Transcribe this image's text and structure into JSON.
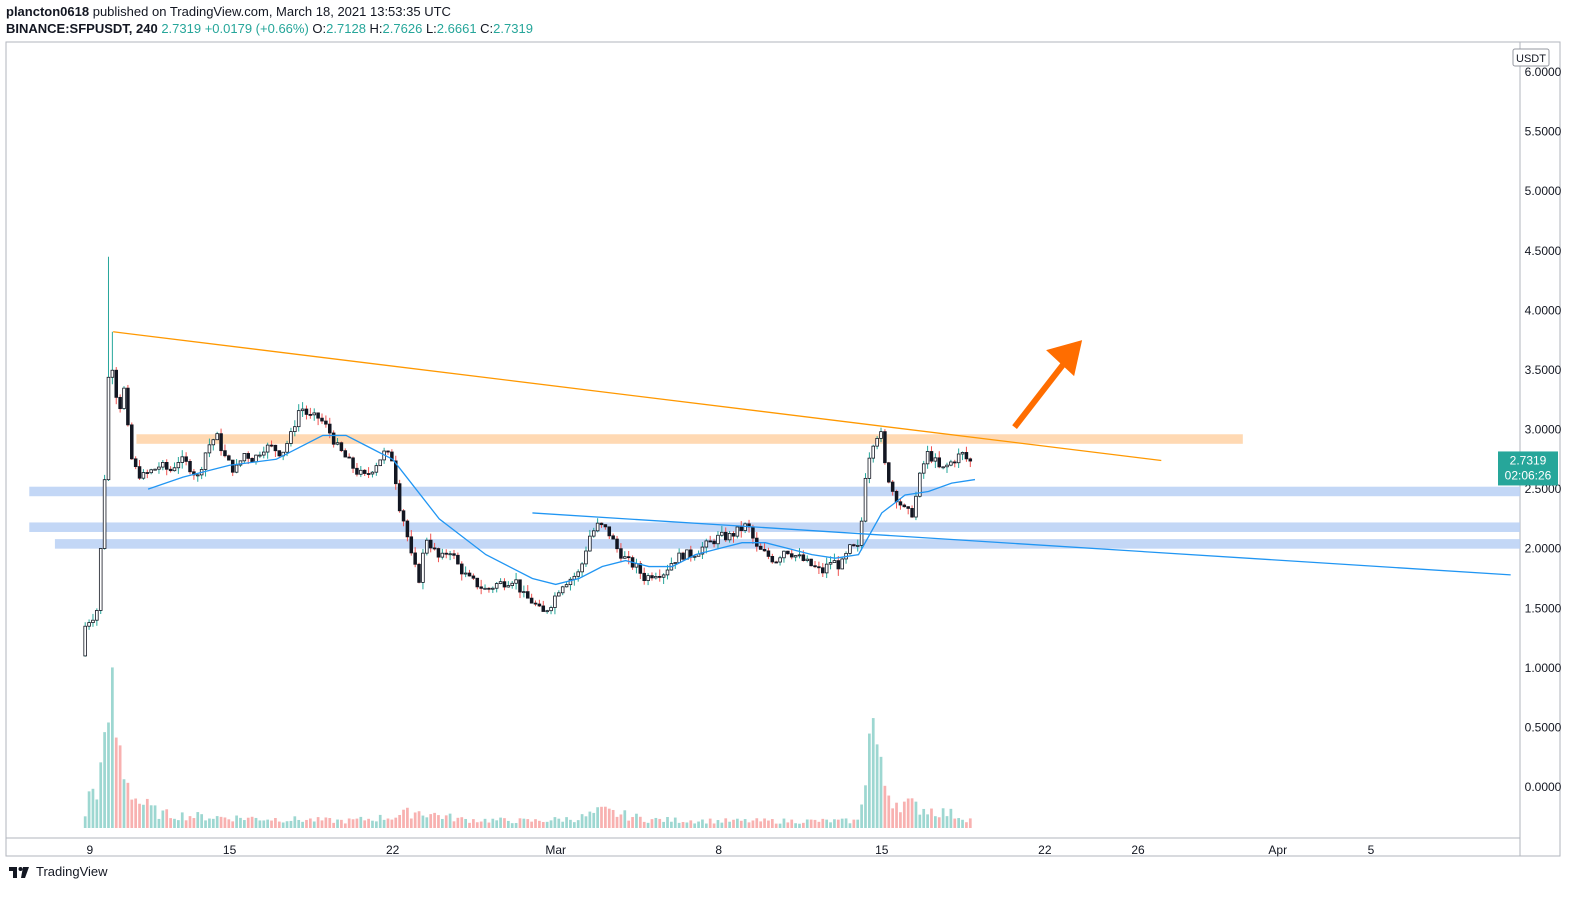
{
  "header": {
    "author": "plancton0618",
    "published_text": "published on TradingView.com, March 18, 2021 13:53:35 UTC",
    "symbol": "BINANCE:SFPUSDT, 240",
    "last": "2.7319",
    "change": "+0.0179 (+0.66%)",
    "open_label": "O:",
    "open": "2.7128",
    "high_label": "H:",
    "high": "2.7626",
    "low_label": "L:",
    "low": "2.6661",
    "close_label": "C:",
    "close": "2.7319"
  },
  "footer": {
    "brand": "TradingView"
  },
  "chart_data": {
    "type": "candlestick",
    "currency": "USDT",
    "ylim": [
      -0.3,
      6.1
    ],
    "y_ticks": [
      0.0,
      0.5,
      1.0,
      1.5,
      2.0,
      2.5,
      3.0,
      3.5,
      4.0,
      4.5,
      5.0,
      5.5,
      6.0
    ],
    "y_tick_labels": [
      "0.0000",
      "0.5000",
      "1.0000",
      "1.5000",
      "2.0000",
      "2.5000",
      "3.0000",
      "3.5000",
      "4.0000",
      "4.5000",
      "5.0000",
      "5.5000",
      "6.0000"
    ],
    "x_ticks": [
      {
        "label": "9",
        "day": 9
      },
      {
        "label": "15",
        "day": 15
      },
      {
        "label": "22",
        "day": 22
      },
      {
        "label": "Mar",
        "day": 29
      },
      {
        "label": "8",
        "day": 36
      },
      {
        "label": "15",
        "day": 43
      },
      {
        "label": "22",
        "day": 50
      },
      {
        "label": "26",
        "day": 54
      },
      {
        "label": "Apr",
        "day": 60
      },
      {
        "label": "5",
        "day": 64
      }
    ],
    "x_range_days": [
      5.4,
      70.4
    ],
    "last_price_label": "2.7319",
    "countdown_label": "02:06:26",
    "colors": {
      "up": "#26a69a",
      "down": "#ef5350",
      "ma": "#2196f3",
      "trend_orange": "#ff9800",
      "zone_orange": "#ffcc99",
      "zone_blue": "#b8d0f5",
      "trend_blue": "#2196f3",
      "arrow": "#ff6d00"
    },
    "price_path": [
      [
        8.8,
        1.1
      ],
      [
        9.0,
        1.4
      ],
      [
        9.2,
        1.4
      ],
      [
        9.5,
        1.5
      ],
      [
        9.8,
        2.6
      ],
      [
        10.0,
        3.6
      ],
      [
        10.2,
        3.5
      ],
      [
        10.4,
        3.1
      ],
      [
        10.6,
        3.4
      ],
      [
        10.8,
        3.0
      ],
      [
        11.0,
        2.7
      ],
      [
        11.4,
        2.6
      ],
      [
        11.8,
        2.65
      ],
      [
        12.2,
        2.7
      ],
      [
        12.6,
        2.65
      ],
      [
        13.0,
        2.75
      ],
      [
        13.4,
        2.7
      ],
      [
        13.8,
        2.6
      ],
      [
        14.2,
        2.85
      ],
      [
        14.6,
        2.95
      ],
      [
        15.0,
        2.75
      ],
      [
        15.4,
        2.65
      ],
      [
        15.8,
        2.8
      ],
      [
        16.2,
        2.75
      ],
      [
        16.6,
        2.85
      ],
      [
        17.0,
        2.85
      ],
      [
        17.4,
        2.8
      ],
      [
        17.8,
        2.95
      ],
      [
        18.2,
        3.2
      ],
      [
        18.6,
        3.1
      ],
      [
        19.0,
        3.1
      ],
      [
        19.4,
        3.0
      ],
      [
        19.8,
        2.85
      ],
      [
        20.2,
        2.75
      ],
      [
        20.6,
        2.65
      ],
      [
        21.0,
        2.6
      ],
      [
        21.4,
        2.7
      ],
      [
        21.8,
        2.8
      ],
      [
        22.2,
        2.75
      ],
      [
        22.4,
        2.4
      ],
      [
        22.7,
        2.2
      ],
      [
        23.0,
        1.9
      ],
      [
        23.3,
        1.75
      ],
      [
        23.6,
        2.1
      ],
      [
        23.9,
        2.0
      ],
      [
        24.2,
        1.9
      ],
      [
        24.6,
        2.0
      ],
      [
        25.0,
        1.85
      ],
      [
        25.4,
        1.75
      ],
      [
        25.8,
        1.7
      ],
      [
        26.2,
        1.65
      ],
      [
        26.6,
        1.7
      ],
      [
        27.0,
        1.72
      ],
      [
        27.4,
        1.75
      ],
      [
        27.8,
        1.6
      ],
      [
        28.2,
        1.55
      ],
      [
        28.6,
        1.45
      ],
      [
        29.0,
        1.55
      ],
      [
        29.4,
        1.7
      ],
      [
        29.8,
        1.75
      ],
      [
        30.2,
        1.8
      ],
      [
        30.6,
        2.1
      ],
      [
        31.0,
        2.2
      ],
      [
        31.4,
        2.15
      ],
      [
        31.8,
        2.0
      ],
      [
        32.2,
        1.9
      ],
      [
        32.6,
        1.85
      ],
      [
        33.0,
        1.75
      ],
      [
        33.4,
        1.8
      ],
      [
        33.8,
        1.8
      ],
      [
        34.2,
        1.9
      ],
      [
        34.6,
        1.95
      ],
      [
        35.0,
        1.95
      ],
      [
        35.4,
        2.0
      ],
      [
        35.8,
        2.05
      ],
      [
        36.2,
        2.1
      ],
      [
        36.6,
        2.1
      ],
      [
        37.0,
        2.15
      ],
      [
        37.4,
        2.2
      ],
      [
        37.8,
        2.0
      ],
      [
        38.2,
        1.95
      ],
      [
        38.6,
        1.9
      ],
      [
        39.0,
        2.0
      ],
      [
        39.4,
        1.95
      ],
      [
        39.8,
        1.9
      ],
      [
        40.2,
        1.85
      ],
      [
        40.6,
        1.8
      ],
      [
        41.0,
        1.9
      ],
      [
        41.4,
        1.85
      ],
      [
        41.8,
        2.0
      ],
      [
        42.2,
        2.0
      ],
      [
        42.5,
        2.7
      ],
      [
        42.8,
        2.9
      ],
      [
        43.1,
        3.0
      ],
      [
        43.3,
        2.7
      ],
      [
        43.6,
        2.5
      ],
      [
        43.9,
        2.4
      ],
      [
        44.2,
        2.3
      ],
      [
        44.5,
        2.3
      ],
      [
        44.8,
        2.6
      ],
      [
        45.1,
        2.8
      ],
      [
        45.4,
        2.75
      ],
      [
        45.7,
        2.65
      ],
      [
        46.0,
        2.7
      ],
      [
        46.3,
        2.75
      ],
      [
        46.6,
        2.8
      ],
      [
        46.9,
        2.73
      ]
    ],
    "ma_path": [
      [
        11.5,
        2.5
      ],
      [
        13,
        2.6
      ],
      [
        15,
        2.7
      ],
      [
        17,
        2.75
      ],
      [
        19,
        2.95
      ],
      [
        20,
        2.95
      ],
      [
        21,
        2.85
      ],
      [
        22,
        2.75
      ],
      [
        23,
        2.5
      ],
      [
        24,
        2.25
      ],
      [
        25,
        2.1
      ],
      [
        26,
        1.95
      ],
      [
        27,
        1.85
      ],
      [
        28,
        1.75
      ],
      [
        29,
        1.7
      ],
      [
        30,
        1.75
      ],
      [
        31,
        1.85
      ],
      [
        32,
        1.9
      ],
      [
        33,
        1.85
      ],
      [
        34,
        1.85
      ],
      [
        35,
        1.95
      ],
      [
        36,
        2.0
      ],
      [
        37,
        2.05
      ],
      [
        38,
        2.05
      ],
      [
        39,
        2.0
      ],
      [
        40,
        1.95
      ],
      [
        41,
        1.92
      ],
      [
        42,
        1.95
      ],
      [
        43,
        2.3
      ],
      [
        44,
        2.45
      ],
      [
        45,
        2.48
      ],
      [
        46,
        2.55
      ],
      [
        47,
        2.58
      ]
    ],
    "volume_path": [
      [
        8.8,
        0.1
      ],
      [
        9.0,
        0.25
      ],
      [
        9.3,
        0.3
      ],
      [
        9.6,
        0.45
      ],
      [
        9.9,
        1.0
      ],
      [
        10.2,
        0.6
      ],
      [
        10.6,
        0.35
      ],
      [
        11,
        0.2
      ],
      [
        12,
        0.1
      ],
      [
        14,
        0.08
      ],
      [
        16,
        0.07
      ],
      [
        18,
        0.06
      ],
      [
        20,
        0.05
      ],
      [
        22,
        0.08
      ],
      [
        23,
        0.12
      ],
      [
        25,
        0.06
      ],
      [
        28,
        0.05
      ],
      [
        30,
        0.07
      ],
      [
        31,
        0.12
      ],
      [
        33,
        0.06
      ],
      [
        36,
        0.05
      ],
      [
        39,
        0.05
      ],
      [
        42,
        0.05
      ],
      [
        42.6,
        0.8
      ],
      [
        43,
        0.35
      ],
      [
        43.5,
        0.2
      ],
      [
        44.5,
        0.15
      ],
      [
        46,
        0.1
      ],
      [
        47,
        0.05
      ]
    ],
    "resistance_zone": [
      2.88,
      2.96
    ],
    "support_zones": [
      [
        2.44,
        2.52
      ],
      [
        2.14,
        2.22
      ],
      [
        2.0,
        2.08
      ]
    ],
    "orange_trendline": [
      [
        10.0,
        3.82
      ],
      [
        55.0,
        2.74
      ]
    ],
    "blue_trendline": [
      [
        28.0,
        2.3
      ],
      [
        70.0,
        1.78
      ]
    ]
  }
}
